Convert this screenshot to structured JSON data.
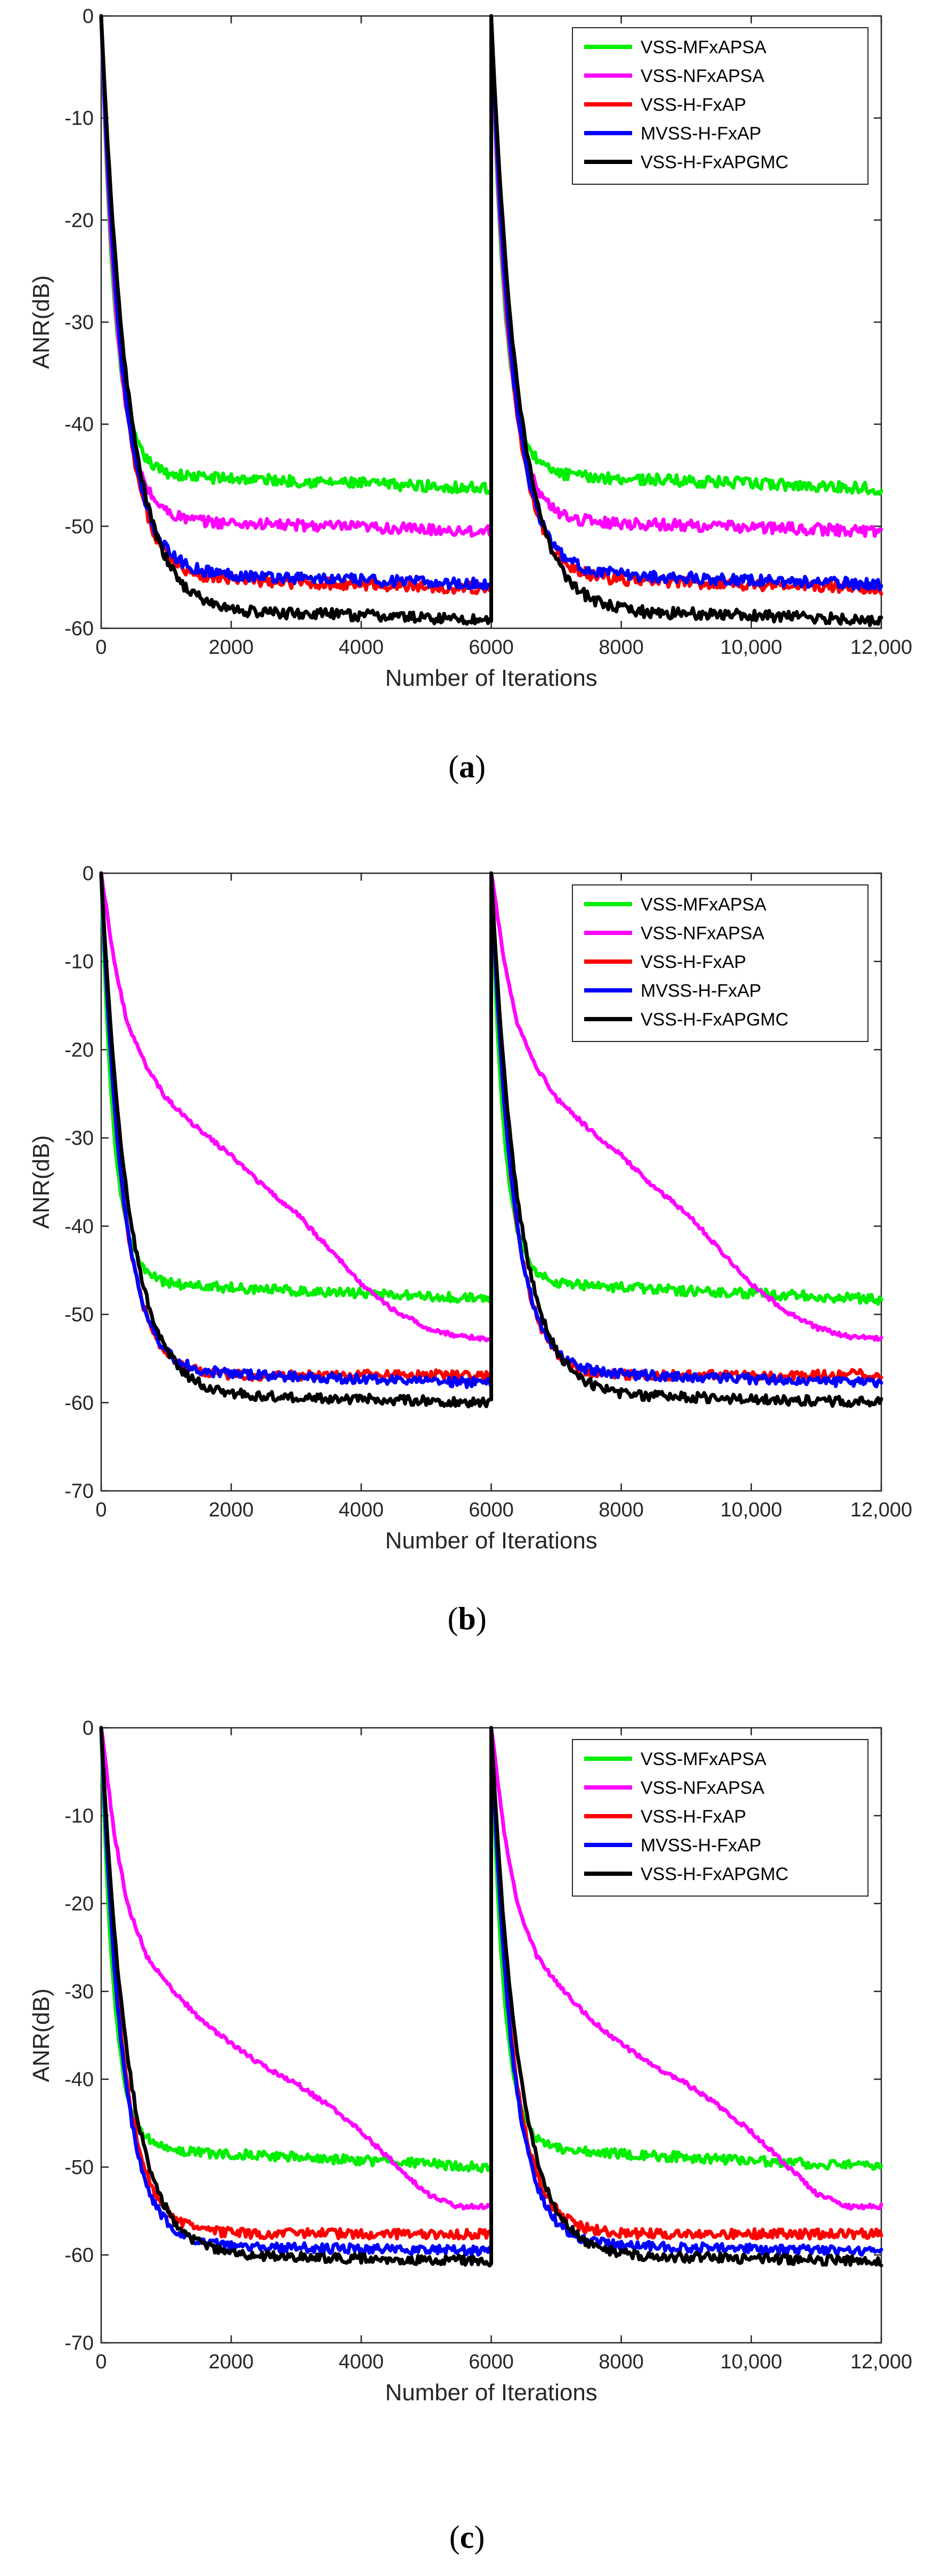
{
  "chart_data": [
    {
      "type": "line",
      "panel": "a",
      "caption": "a",
      "title": "",
      "xlabel": "Number of Iterations",
      "ylabel": "ANR(dB)",
      "xlim": [
        0,
        12000
      ],
      "ylim": [
        -60,
        0
      ],
      "xticks": [
        0,
        2000,
        4000,
        6000,
        8000,
        10000,
        12000
      ],
      "xtick_labels": [
        "0",
        "2000",
        "4000",
        "6000",
        "8000",
        "10,000",
        "12,000"
      ],
      "yticks": [
        0,
        -10,
        -20,
        -30,
        -40,
        -50,
        -60
      ],
      "ytick_labels": [
        "0",
        "-10",
        "-20",
        "-30",
        "-40",
        "-50",
        "-60"
      ],
      "legend_position": "top-right",
      "series": [
        {
          "name": "VSS-MFxAPSA",
          "color": "#00ee00",
          "floor": -45.0,
          "drift": -1.3,
          "tau": 210,
          "settle": 700
        },
        {
          "name": "VSS-NFxAPSA",
          "color": "#ff00ff",
          "floor": -49.5,
          "drift": -1.0,
          "tau": 260,
          "settle": 900
        },
        {
          "name": "VSS-H-FxAP",
          "color": "#ff0000",
          "floor": -55.3,
          "drift": -0.8,
          "tau": 330,
          "settle": 1800
        },
        {
          "name": "MVSS-H-FxAP",
          "color": "#0000ff",
          "floor": -54.8,
          "drift": -0.9,
          "tau": 330,
          "settle": 1800
        },
        {
          "name": "VSS-H-FxAPGMC",
          "color": "#000000",
          "floor": -58.6,
          "drift": -0.6,
          "tau": 420,
          "settle": 3400
        }
      ]
    },
    {
      "type": "line",
      "panel": "b",
      "caption": "b",
      "title": "",
      "xlabel": "Number of Iterations",
      "ylabel": "ANR(dB)",
      "xlim": [
        0,
        12000
      ],
      "ylim": [
        -70,
        0
      ],
      "xticks": [
        0,
        2000,
        4000,
        6000,
        8000,
        10000,
        12000
      ],
      "xtick_labels": [
        "0",
        "2000",
        "4000",
        "6000",
        "8000",
        "10,000",
        "12,000"
      ],
      "yticks": [
        0,
        -10,
        -20,
        -30,
        -40,
        -50,
        -60,
        -70
      ],
      "ytick_labels": [
        "0",
        "-10",
        "-20",
        "-30",
        "-40",
        "-50",
        "-60",
        "-70"
      ],
      "legend_position": "top-right",
      "series": [
        {
          "name": "VSS-MFxAPSA",
          "color": "#00ee00",
          "floor": -46.5,
          "drift": -1.8,
          "tau": 200,
          "settle": 600
        },
        {
          "name": "VSS-NFxAPSA",
          "color": "#ff00ff",
          "points": [
            [
              0,
              0
            ],
            [
              200,
              -10
            ],
            [
              400,
              -17
            ],
            [
              700,
              -22
            ],
            [
              1000,
              -25.5
            ],
            [
              1500,
              -29
            ],
            [
              2000,
              -32
            ],
            [
              2500,
              -35.5
            ],
            [
              3000,
              -38.5
            ],
            [
              3500,
              -42.5
            ],
            [
              4000,
              -46.5
            ],
            [
              4500,
              -49.5
            ],
            [
              5000,
              -51.5
            ],
            [
              5500,
              -52.5
            ],
            [
              6000,
              -52.8
            ]
          ]
        },
        {
          "name": "VSS-H-FxAP",
          "color": "#ff0000",
          "floor": -57.0,
          "drift": 0.2,
          "tau": 330,
          "settle": 1800
        },
        {
          "name": "MVSS-H-FxAP",
          "color": "#0000ff",
          "floor": -56.8,
          "drift": -1.0,
          "tau": 330,
          "settle": 1800
        },
        {
          "name": "VSS-H-FxAPGMC",
          "color": "#000000",
          "floor": -59.4,
          "drift": -0.6,
          "tau": 420,
          "settle": 3000
        }
      ]
    },
    {
      "type": "line",
      "panel": "c",
      "caption": "c",
      "title": "",
      "xlabel": "Number of Iterations",
      "ylabel": "ANR(dB)",
      "xlim": [
        0,
        12000
      ],
      "ylim": [
        -70,
        0
      ],
      "xticks": [
        0,
        2000,
        4000,
        6000,
        8000,
        10000,
        12000
      ],
      "xtick_labels": [
        "0",
        "2000",
        "4000",
        "6000",
        "8000",
        "10,000",
        "12,000"
      ],
      "yticks": [
        0,
        -10,
        -20,
        -30,
        -40,
        -50,
        -60,
        -70
      ],
      "ytick_labels": [
        "0",
        "-10",
        "-20",
        "-30",
        "-40",
        "-50",
        "-60",
        "-70"
      ],
      "legend_position": "top-right",
      "series": [
        {
          "name": "VSS-MFxAPSA",
          "color": "#00ee00",
          "floor": -48.0,
          "drift": -2.0,
          "tau": 200,
          "settle": 600
        },
        {
          "name": "VSS-NFxAPSA",
          "color": "#ff00ff",
          "points": [
            [
              0,
              0
            ],
            [
              200,
              -12
            ],
            [
              400,
              -20
            ],
            [
              700,
              -26
            ],
            [
              1000,
              -29
            ],
            [
              1500,
              -33
            ],
            [
              2000,
              -36
            ],
            [
              2500,
              -38.5
            ],
            [
              3000,
              -40.5
            ],
            [
              3500,
              -43
            ],
            [
              4000,
              -46
            ],
            [
              4500,
              -49.5
            ],
            [
              5000,
              -53
            ],
            [
              5500,
              -54.5
            ],
            [
              6000,
              -54.5
            ]
          ]
        },
        {
          "name": "VSS-H-FxAP",
          "color": "#ff0000",
          "floor": -57.6,
          "drift": 0.0,
          "tau": 330,
          "settle": 1800
        },
        {
          "name": "MVSS-H-FxAP",
          "color": "#0000ff",
          "floor": -59.0,
          "drift": -0.6,
          "tau": 330,
          "settle": 1800
        },
        {
          "name": "VSS-H-FxAPGMC",
          "color": "#000000",
          "floor": -60.3,
          "drift": -0.4,
          "tau": 420,
          "settle": 3000
        }
      ]
    }
  ]
}
